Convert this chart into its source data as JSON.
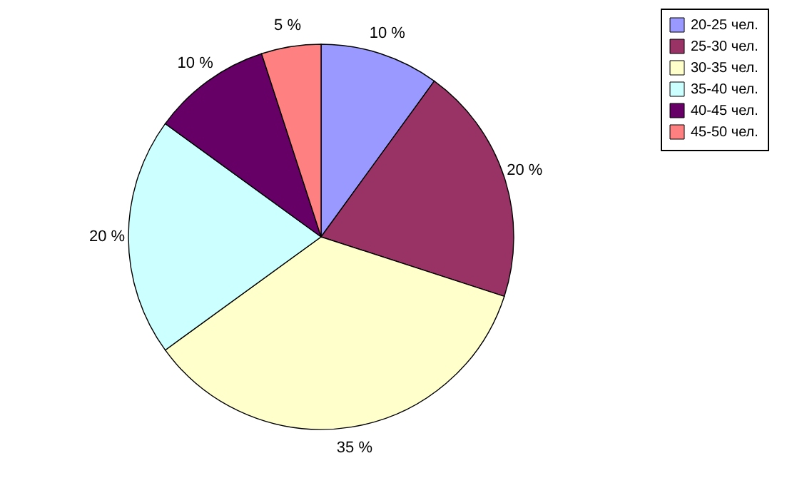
{
  "chart_data": {
    "type": "pie",
    "categories": [
      "20-25 чел.",
      "25-30 чел.",
      "30-35 чел.",
      "35-40 чел.",
      "40-45 чел.",
      "45-50 чел."
    ],
    "values": [
      10,
      20,
      35,
      20,
      10,
      5
    ],
    "value_labels": [
      "10 %",
      "20 %",
      "35 %",
      "20 %",
      "10 %",
      "5 %"
    ],
    "colors": [
      "#9999ff",
      "#993366",
      "#ffffcc",
      "#ccffff",
      "#660066",
      "#ff8080"
    ],
    "legend": "right"
  }
}
